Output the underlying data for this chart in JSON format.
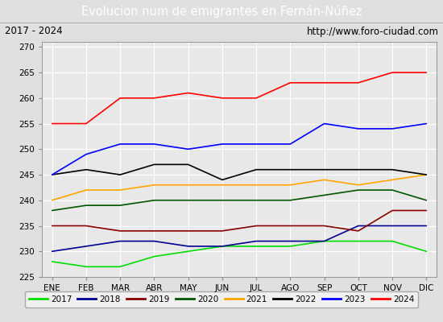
{
  "title": "Evolucion num de emigrantes en Fernán-Núñez",
  "subtitle_left": "2017 - 2024",
  "subtitle_right": "http://www.foro-ciudad.com",
  "months": [
    "ENE",
    "FEB",
    "MAR",
    "ABR",
    "MAY",
    "JUN",
    "JUL",
    "AGO",
    "SEP",
    "OCT",
    "NOV",
    "DIC"
  ],
  "ylim": [
    225,
    271
  ],
  "yticks": [
    225,
    230,
    235,
    240,
    245,
    250,
    255,
    260,
    265,
    270
  ],
  "series": {
    "2017": {
      "color": "#00dd00",
      "values": [
        228,
        227,
        227,
        229,
        230,
        231,
        231,
        231,
        232,
        232,
        232,
        230
      ]
    },
    "2018": {
      "color": "#000090",
      "values": [
        230,
        231,
        232,
        232,
        231,
        231,
        232,
        232,
        232,
        235,
        235,
        235
      ]
    },
    "2019": {
      "color": "#880000",
      "values": [
        235,
        235,
        234,
        234,
        234,
        234,
        235,
        235,
        235,
        234,
        238,
        238
      ]
    },
    "2020": {
      "color": "#005500",
      "values": [
        238,
        239,
        239,
        240,
        240,
        240,
        240,
        240,
        241,
        242,
        242,
        240
      ]
    },
    "2021": {
      "color": "#ffa500",
      "values": [
        240,
        242,
        242,
        243,
        243,
        243,
        243,
        243,
        244,
        243,
        244,
        245
      ]
    },
    "2022": {
      "color": "#000000",
      "values": [
        245,
        246,
        245,
        247,
        247,
        244,
        246,
        246,
        246,
        246,
        246,
        245
      ]
    },
    "2023": {
      "color": "#0000ff",
      "values": [
        245,
        249,
        251,
        251,
        250,
        251,
        251,
        251,
        255,
        254,
        254,
        255
      ]
    },
    "2024": {
      "color": "#ff0000",
      "values": [
        255,
        255,
        260,
        260,
        261,
        260,
        260,
        263,
        263,
        263,
        265,
        265
      ]
    }
  },
  "background_color": "#e0e0e0",
  "plot_bg_color": "#e8e8e8",
  "title_bg_color": "#4a7abc",
  "title_text_color": "#ffffff",
  "header_bg_color": "#d0d0d0",
  "grid_color": "#ffffff",
  "legend_bg_color": "#f5f5f5"
}
